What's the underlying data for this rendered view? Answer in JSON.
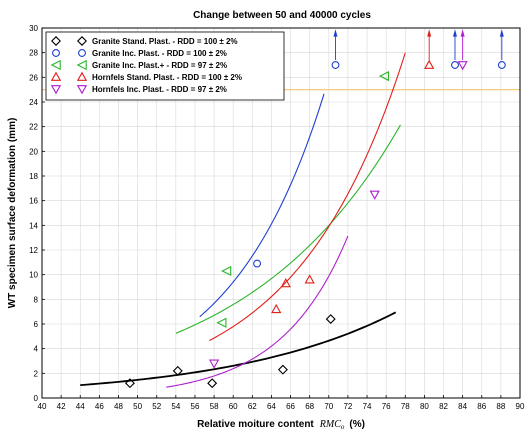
{
  "chart_data": {
    "type": "scatter",
    "title": "Change between 50 and 40000 cycles",
    "xlabel": "Relative moiture content",
    "xlabel_math": "RMC",
    "xlabel_math_sub": "o",
    "xlabel_unit": "(%)",
    "ylabel": "WT specimen surface deformation (mm)",
    "xlim": [
      40,
      90
    ],
    "ylim": [
      0,
      30
    ],
    "xticks": [
      "40",
      "42",
      "44",
      "46",
      "48",
      "50",
      "52",
      "54",
      "56",
      "58",
      "60",
      "62",
      "64",
      "66",
      "68",
      "70",
      "72",
      "74",
      "76",
      "78",
      "80",
      "82",
      "84",
      "86",
      "88",
      "90"
    ],
    "yticks": [
      "0",
      "2",
      "4",
      "6",
      "8",
      "10",
      "12",
      "14",
      "16",
      "18",
      "20",
      "22",
      "24",
      "26",
      "28",
      "30"
    ],
    "grid": true,
    "legend_position": "top-left",
    "reference_line": {
      "y": 25,
      "color": "#f5c66b"
    },
    "series": [
      {
        "name": "Granite Stand. Plast.  - RDD = 100 ± 2%",
        "marker": "diamond",
        "color": "#000000",
        "points": [
          [
            49.2,
            1.2
          ],
          [
            54.2,
            2.2
          ],
          [
            57.8,
            1.2
          ],
          [
            65.2,
            2.3
          ],
          [
            70.2,
            6.4
          ]
        ],
        "fit": {
          "a": 0.083,
          "b": 0.0575,
          "x_from": 44,
          "x_to": 77
        }
      },
      {
        "name": "Granite Inc. Plast.  - RDD = 100 ± 2%",
        "marker": "circle",
        "color": "#1f3fd1",
        "points": [
          [
            62.5,
            10.9
          ]
        ],
        "above_range": [
          70.7,
          83.2,
          88.1
        ],
        "fit": {
          "a": 0.0213,
          "b": 0.1015,
          "x_from": 56.5,
          "x_to": 69.5
        }
      },
      {
        "name": "Granite Inc. Plast.+  - RDD = 97 ± 2%",
        "marker": "triangle-left",
        "color": "#2bb52b",
        "points": [
          [
            59.3,
            10.3
          ],
          [
            58.8,
            6.1
          ],
          [
            75.8,
            26.1
          ]
        ],
        "fit": {
          "a": 0.1915,
          "b": 0.0613,
          "x_from": 54,
          "x_to": 77.5
        }
      },
      {
        "name": "Hornfels Stand. Plast.  - RDD = 100 ± 2%",
        "marker": "triangle-up",
        "color": "#e0201a",
        "points": [
          [
            64.5,
            7.2
          ],
          [
            65.5,
            9.3
          ],
          [
            68.0,
            9.6
          ]
        ],
        "above_range": [
          80.5
        ],
        "fit": {
          "a": 0.0304,
          "b": 0.0875,
          "x_from": 57.5,
          "x_to": 78
        }
      },
      {
        "name": "Hornfels Inc. Plast.  - RDD = 97 ± 2%",
        "marker": "triangle-down",
        "color": "#b01fd0",
        "points": [
          [
            58.0,
            2.8
          ],
          [
            74.8,
            16.5
          ]
        ],
        "above_range": [
          84.0
        ],
        "fit": {
          "a": 0.00046,
          "b": 0.1425,
          "x_from": 53,
          "x_to": 72
        }
      }
    ]
  }
}
